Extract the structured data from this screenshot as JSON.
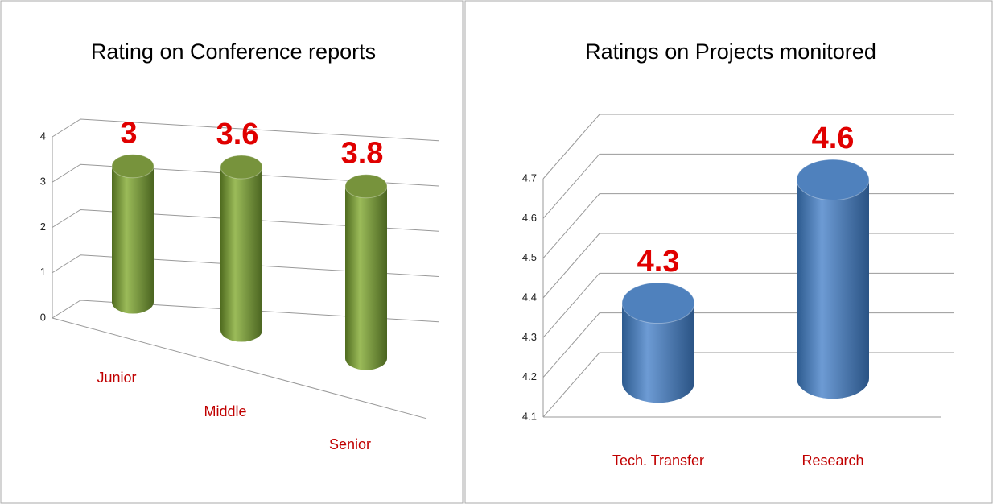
{
  "chart_data": [
    {
      "type": "bar",
      "title": "Rating on Conference reports",
      "categories": [
        "Junior",
        "Middle",
        "Senior"
      ],
      "values": [
        3,
        3.6,
        3.8
      ],
      "color": "#77933c",
      "ylim": [
        0,
        4
      ],
      "yticks": [
        0,
        1,
        2,
        3,
        4
      ],
      "grid": true
    },
    {
      "type": "bar",
      "title": "Ratings  on Projects monitored",
      "categories": [
        "Tech. Transfer",
        "Research"
      ],
      "values": [
        4.3,
        4.6
      ],
      "color": "#4f81bd",
      "ylim": [
        4.1,
        4.7
      ],
      "yticks": [
        4.1,
        4.2,
        4.3,
        4.4,
        4.5,
        4.6,
        4.7
      ],
      "grid": true
    }
  ]
}
